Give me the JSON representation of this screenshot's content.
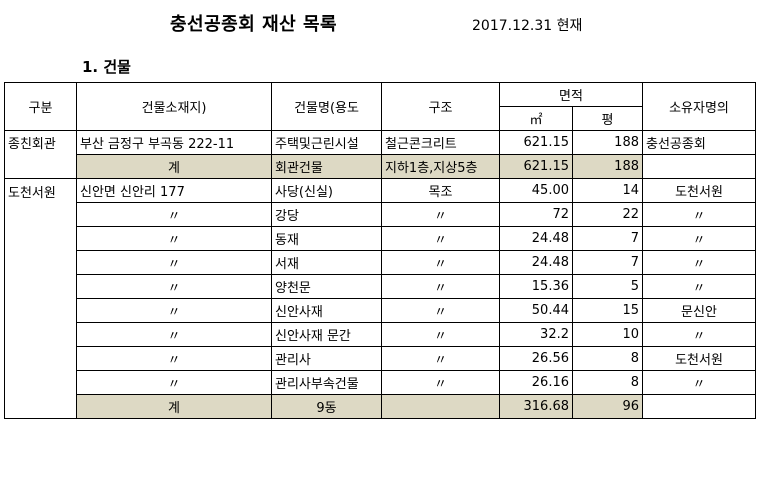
{
  "title": "충선공종회 재산 목록",
  "date": "2017.12.31 현재",
  "section": "1. 건물",
  "headers": {
    "category": "구분",
    "location": "건물소재지)",
    "name": "건물명(용도",
    "structure": "구조",
    "area": "면적",
    "sqm": "㎡",
    "pyeong": "평",
    "owner": "소유자명의"
  },
  "group1": {
    "category": "종친회관",
    "row": {
      "location": "부산 금정구 부곡동 222-11",
      "name": "주택및근린시설",
      "structure": "철근콘크리트",
      "sqm": "621.15",
      "pyeong": "188",
      "owner": "충선공종회"
    },
    "total": {
      "label": "계",
      "name": "회관건물",
      "structure": "지하1층,지상5층",
      "sqm": "621.15",
      "pyeong": "188",
      "owner": ""
    }
  },
  "group2": {
    "category": "도천서원",
    "rows": [
      {
        "location": "신안면 신안리 177",
        "name": "사당(신실)",
        "structure": "목조",
        "sqm": "45.00",
        "pyeong": "14",
        "owner": "도천서원"
      },
      {
        "location": "〃",
        "name": "강당",
        "structure": "〃",
        "sqm": "72",
        "pyeong": "22",
        "owner": "〃"
      },
      {
        "location": "〃",
        "name": "동재",
        "structure": "〃",
        "sqm": "24.48",
        "pyeong": "7",
        "owner": "〃"
      },
      {
        "location": "〃",
        "name": "서재",
        "structure": "〃",
        "sqm": "24.48",
        "pyeong": "7",
        "owner": "〃"
      },
      {
        "location": "〃",
        "name": "양천문",
        "structure": "〃",
        "sqm": "15.36",
        "pyeong": "5",
        "owner": "〃"
      },
      {
        "location": "〃",
        "name": "신안사재",
        "structure": "〃",
        "sqm": "50.44",
        "pyeong": "15",
        "owner": "문신안"
      },
      {
        "location": "〃",
        "name": "신안사재 문간",
        "structure": "〃",
        "sqm": "32.2",
        "pyeong": "10",
        "owner": "〃"
      },
      {
        "location": "〃",
        "name": "관리사",
        "structure": "〃",
        "sqm": "26.56",
        "pyeong": "8",
        "owner": "도천서원"
      },
      {
        "location": "〃",
        "name": "관리사부속건물",
        "structure": "〃",
        "sqm": "26.16",
        "pyeong": "8",
        "owner": "〃"
      }
    ],
    "total": {
      "label": "계",
      "name": "9동",
      "structure": "",
      "sqm": "316.68",
      "pyeong": "96",
      "owner": ""
    }
  }
}
